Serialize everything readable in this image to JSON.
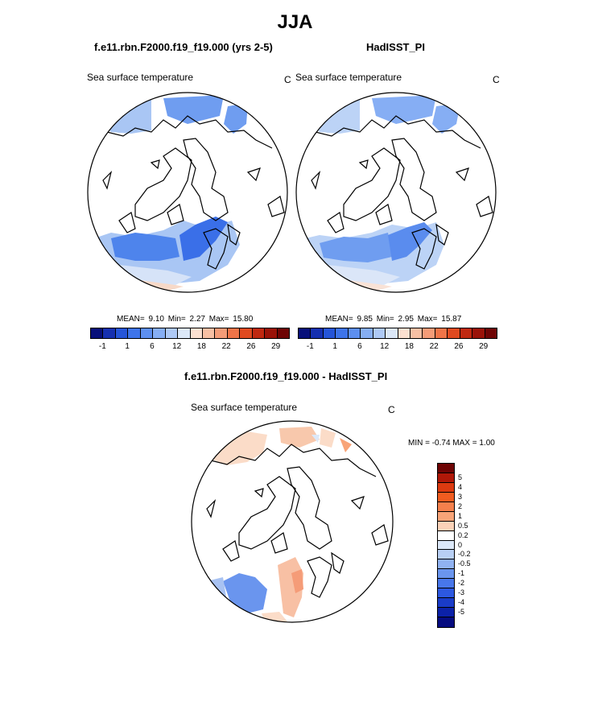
{
  "title": "JJA",
  "panels": [
    {
      "title": "f.e11.rbn.F2000.f19_f19.000 (yrs 2-5)",
      "variable": "Sea surface temperature",
      "units": "C",
      "stats": {
        "mean_label": "MEAN=",
        "mean": "9.10",
        "min_label": "Min=",
        "min": "2.27",
        "max_label": "Max=",
        "max": "15.80"
      }
    },
    {
      "title": "HadISST_PI",
      "variable": "Sea surface temperature",
      "units": "C",
      "stats": {
        "mean_label": "MEAN=",
        "mean": "9.85",
        "min_label": "Min=",
        "min": "2.95",
        "max_label": "Max=",
        "max": "15.87"
      }
    },
    {
      "title": "f.e11.rbn.F2000.f19_f19.000 - HadISST_PI",
      "variable": "Sea surface temperature",
      "units": "C",
      "range_label": "MIN =  -0.74 MAX =   1.00"
    }
  ],
  "abs_colorbar": {
    "colors": [
      "#08107a",
      "#1530b0",
      "#2555d8",
      "#3e74ea",
      "#5d8ff0",
      "#86aef4",
      "#aec9f6",
      "#dce8f8",
      "#fce0d0",
      "#f8c0a4",
      "#f59c78",
      "#f07448",
      "#e04a20",
      "#c02810",
      "#9a1208",
      "#6e0404"
    ],
    "tick_labels": [
      "-1",
      "1",
      "6",
      "12",
      "18",
      "22",
      "26",
      "29"
    ]
  },
  "diff_colorbar": {
    "colors": [
      "#6e0404",
      "#b01808",
      "#dc3a10",
      "#f25c20",
      "#f5804c",
      "#f8a478",
      "#fbd2b8",
      "#ffffff",
      "#dce8f8",
      "#b8cff4",
      "#90b2f2",
      "#6a95ee",
      "#4877ea",
      "#2d58e0",
      "#1a3cc8",
      "#0c22a8",
      "#060c80"
    ],
    "labels": [
      "5",
      "4",
      "3",
      "2",
      "1",
      "0.5",
      "0.2",
      "0",
      "-0.2",
      "-0.5",
      "-1",
      "-2",
      "-3",
      "-4",
      "-5"
    ]
  }
}
